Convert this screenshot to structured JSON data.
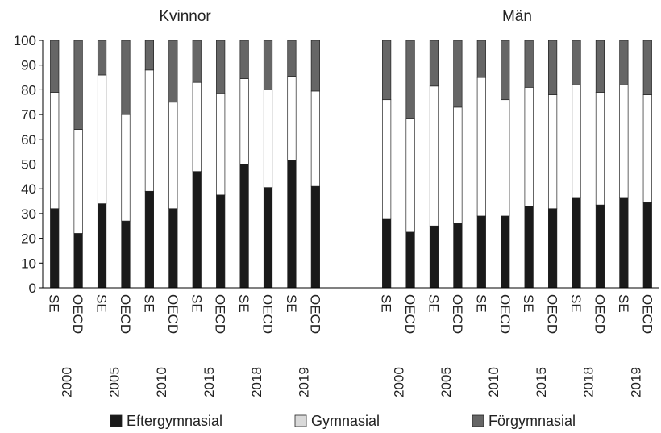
{
  "chart_data": {
    "type": "bar",
    "stacked": true,
    "ylim": [
      0,
      100
    ],
    "yticks": [
      0,
      10,
      20,
      30,
      40,
      50,
      60,
      70,
      80,
      90,
      100
    ],
    "panels": [
      {
        "title": "Kvinnor",
        "groups": [
          {
            "year": "2000",
            "bars": [
              {
                "label": "SE",
                "values": [
                  32,
                  47,
                  21
                ]
              },
              {
                "label": "OECD",
                "values": [
                  22,
                  42,
                  36
                ]
              }
            ]
          },
          {
            "year": "2005",
            "bars": [
              {
                "label": "SE",
                "values": [
                  34,
                  52,
                  14
                ]
              },
              {
                "label": "OECD",
                "values": [
                  27,
                  43,
                  30
                ]
              }
            ]
          },
          {
            "year": "2010",
            "bars": [
              {
                "label": "SE",
                "values": [
                  39,
                  49,
                  12
                ]
              },
              {
                "label": "OECD",
                "values": [
                  32,
                  43,
                  25
                ]
              }
            ]
          },
          {
            "year": "2015",
            "bars": [
              {
                "label": "SE",
                "values": [
                  47,
                  36,
                  17
                ]
              },
              {
                "label": "OECD",
                "values": [
                  37.5,
                  41,
                  21.5
                ]
              }
            ]
          },
          {
            "year": "2018",
            "bars": [
              {
                "label": "SE",
                "values": [
                  50,
                  34.5,
                  15.5
                ]
              },
              {
                "label": "OECD",
                "values": [
                  40.5,
                  39.5,
                  20
                ]
              }
            ]
          },
          {
            "year": "2019",
            "bars": [
              {
                "label": "SE",
                "values": [
                  51.5,
                  34,
                  14.5
                ]
              },
              {
                "label": "OECD",
                "values": [
                  41,
                  38.5,
                  20.5
                ]
              }
            ]
          }
        ]
      },
      {
        "title": "Män",
        "groups": [
          {
            "year": "2000",
            "bars": [
              {
                "label": "SE",
                "values": [
                  28,
                  48,
                  24
                ]
              },
              {
                "label": "OECD",
                "values": [
                  22.5,
                  46,
                  31.5
                ]
              }
            ]
          },
          {
            "year": "2005",
            "bars": [
              {
                "label": "SE",
                "values": [
                  25,
                  56.5,
                  18.5
                ]
              },
              {
                "label": "OECD",
                "values": [
                  26,
                  47,
                  27
                ]
              }
            ]
          },
          {
            "year": "2010",
            "bars": [
              {
                "label": "SE",
                "values": [
                  29,
                  56,
                  15
                ]
              },
              {
                "label": "OECD",
                "values": [
                  29,
                  47,
                  24
                ]
              }
            ]
          },
          {
            "year": "2015",
            "bars": [
              {
                "label": "SE",
                "values": [
                  33,
                  48,
                  19
                ]
              },
              {
                "label": "OECD",
                "values": [
                  32,
                  46,
                  22
                ]
              }
            ]
          },
          {
            "year": "2018",
            "bars": [
              {
                "label": "SE",
                "values": [
                  36.5,
                  45.5,
                  18
                ]
              },
              {
                "label": "OECD",
                "values": [
                  33.5,
                  45.5,
                  21
                ]
              }
            ]
          },
          {
            "year": "2019",
            "bars": [
              {
                "label": "SE",
                "values": [
                  36.5,
                  45.5,
                  18
                ]
              },
              {
                "label": "OECD",
                "values": [
                  34.5,
                  43.5,
                  22
                ]
              }
            ]
          }
        ]
      }
    ],
    "series": [
      {
        "name": "Eftergymnasial",
        "color": "#1a1a1a"
      },
      {
        "name": "Gymnasial",
        "color": "#ffffff"
      },
      {
        "name": "Förgymnasial",
        "color": "#666666"
      }
    ],
    "legend_position": "bottom",
    "grid": false
  }
}
